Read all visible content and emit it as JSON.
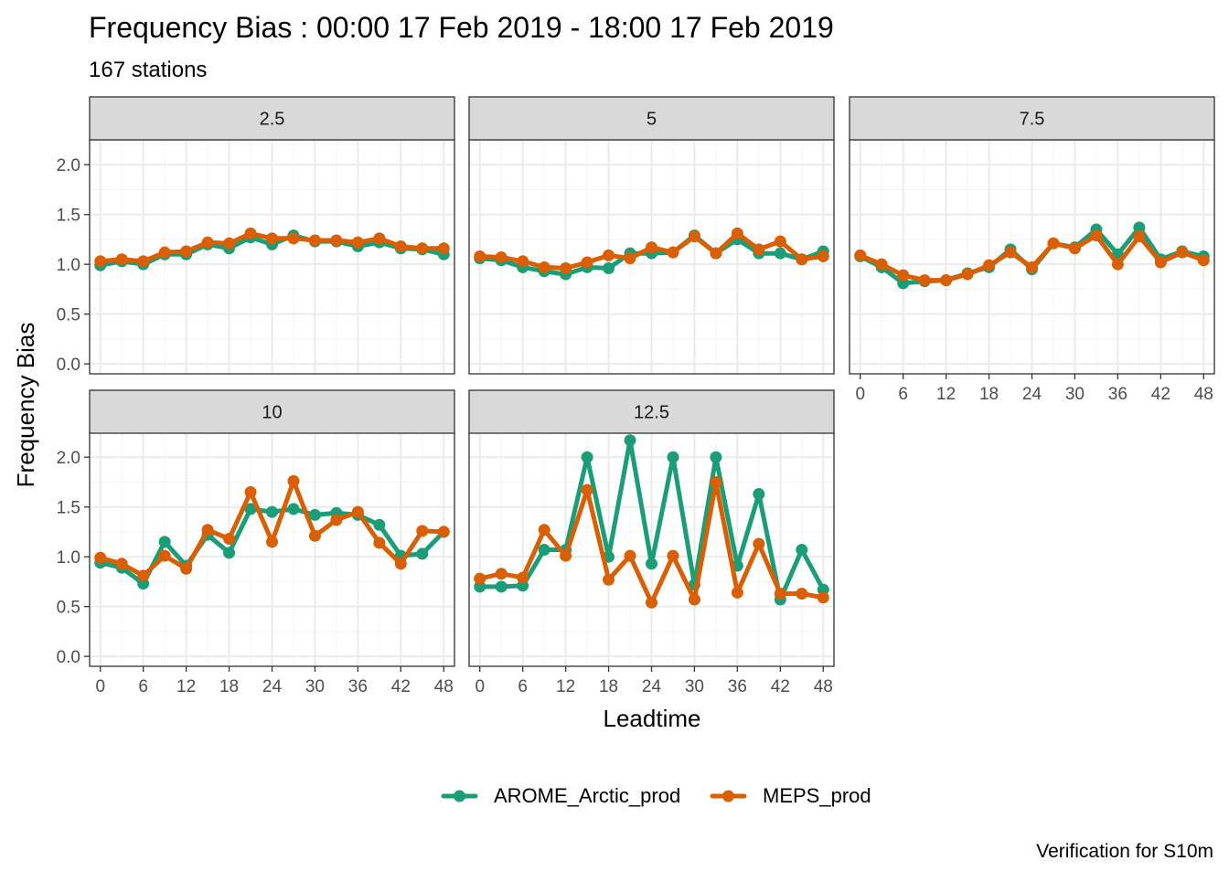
{
  "title": "Frequency Bias : 00:00 17 Feb 2019 - 18:00 17 Feb 2019",
  "subtitle": "167 stations",
  "caption": "Verification for S10m",
  "colors": {
    "AROME_Arctic_prod": "#1b9e77",
    "MEPS_prod": "#d95f02",
    "strip_fill": "#d9d9d9",
    "grid_major": "#ebebeb",
    "grid_minor": "#f5f5f5"
  },
  "chart_data": {
    "type": "line",
    "facet_by": "threshold",
    "xlabel": "Leadtime",
    "ylabel": "Frequency Bias",
    "xlim": [
      -1.5,
      49.5
    ],
    "ylim": [
      -0.1,
      2.25
    ],
    "x_ticks": [
      0,
      6,
      12,
      18,
      24,
      30,
      36,
      42,
      48
    ],
    "y_ticks": [
      0.0,
      0.5,
      1.0,
      1.5,
      2.0
    ],
    "y_tick_labels": [
      "0.0",
      "0.5",
      "1.0",
      "1.5",
      "2.0"
    ],
    "grid": true,
    "legend_position": "bottom",
    "x": [
      0,
      3,
      6,
      9,
      12,
      15,
      18,
      21,
      24,
      27,
      30,
      33,
      36,
      39,
      42,
      45,
      48
    ],
    "legend": [
      "AROME_Arctic_prod",
      "MEPS_prod"
    ],
    "panels": [
      {
        "label": "2.5",
        "series": [
          {
            "name": "AROME_Arctic_prod",
            "values": [
              0.99,
              1.03,
              1.0,
              1.1,
              1.1,
              1.2,
              1.16,
              1.27,
              1.2,
              1.29,
              1.23,
              1.23,
              1.18,
              1.22,
              1.16,
              1.15,
              1.1
            ]
          },
          {
            "name": "MEPS_prod",
            "values": [
              1.03,
              1.05,
              1.03,
              1.12,
              1.13,
              1.22,
              1.21,
              1.31,
              1.26,
              1.26,
              1.24,
              1.24,
              1.22,
              1.26,
              1.18,
              1.16,
              1.16
            ]
          }
        ]
      },
      {
        "label": "5",
        "series": [
          {
            "name": "AROME_Arctic_prod",
            "values": [
              1.06,
              1.04,
              0.97,
              0.93,
              0.9,
              0.97,
              0.96,
              1.11,
              1.11,
              1.12,
              1.29,
              1.11,
              1.25,
              1.11,
              1.11,
              1.05,
              1.13
            ]
          },
          {
            "name": "MEPS_prod",
            "values": [
              1.08,
              1.07,
              1.03,
              0.97,
              0.96,
              1.02,
              1.09,
              1.06,
              1.17,
              1.12,
              1.28,
              1.11,
              1.31,
              1.15,
              1.23,
              1.05,
              1.08
            ]
          }
        ]
      },
      {
        "label": "7.5",
        "series": [
          {
            "name": "AROME_Arctic_prod",
            "values": [
              1.08,
              0.97,
              0.81,
              0.83,
              0.84,
              0.91,
              0.97,
              1.15,
              0.95,
              1.21,
              1.17,
              1.35,
              1.1,
              1.37,
              1.05,
              1.13,
              1.08
            ]
          },
          {
            "name": "MEPS_prod",
            "values": [
              1.09,
              1.0,
              0.89,
              0.84,
              0.84,
              0.9,
              0.99,
              1.12,
              0.97,
              1.21,
              1.16,
              1.29,
              1.0,
              1.28,
              1.02,
              1.12,
              1.04
            ]
          }
        ]
      },
      {
        "label": "10",
        "series": [
          {
            "name": "AROME_Arctic_prod",
            "values": [
              0.94,
              0.89,
              0.73,
              1.15,
              0.91,
              1.22,
              1.04,
              1.48,
              1.45,
              1.48,
              1.42,
              1.44,
              1.42,
              1.32,
              1.01,
              1.03,
              1.25
            ]
          },
          {
            "name": "MEPS_prod",
            "values": [
              0.99,
              0.93,
              0.81,
              1.01,
              0.88,
              1.27,
              1.18,
              1.65,
              1.15,
              1.76,
              1.21,
              1.37,
              1.45,
              1.14,
              0.93,
              1.26,
              1.25
            ]
          }
        ]
      },
      {
        "label": "12.5",
        "series": [
          {
            "name": "AROME_Arctic_prod",
            "values": [
              0.7,
              0.7,
              0.71,
              1.07,
              1.07,
              2.0,
              1.0,
              2.17,
              0.93,
              2.0,
              0.72,
              2.0,
              0.91,
              1.63,
              0.57,
              1.07,
              0.67
            ]
          },
          {
            "name": "MEPS_prod",
            "values": [
              0.78,
              0.83,
              0.79,
              1.27,
              1.01,
              1.67,
              0.77,
              1.01,
              0.54,
              1.01,
              0.57,
              1.75,
              0.64,
              1.13,
              0.63,
              0.63,
              0.59
            ]
          }
        ]
      }
    ]
  }
}
